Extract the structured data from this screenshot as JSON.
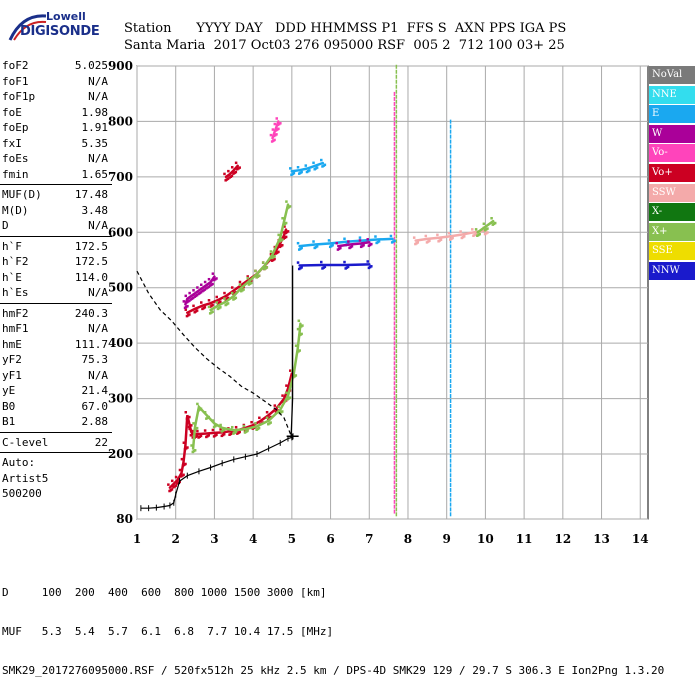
{
  "logo": {
    "line1": "Lowell",
    "line2": "DIGISONDE"
  },
  "header": {
    "row1": "Station      YYYY DAY   DDD HHMMSS P1  FFS S  AXN PPS IGA PS",
    "row2": "Santa Maria  2017 Oct03 276 095000 RSF  005 2  712 100 03+ 25"
  },
  "params": {
    "group1": [
      {
        "k": "foF2",
        "v": "5.025"
      },
      {
        "k": "foF1",
        "v": "N/A"
      },
      {
        "k": "foF1p",
        "v": "N/A"
      },
      {
        "k": "foE",
        "v": "1.98"
      },
      {
        "k": "foEp",
        "v": "1.91"
      },
      {
        "k": "fxI",
        "v": "5.35"
      },
      {
        "k": "foEs",
        "v": "N/A"
      },
      {
        "k": "fmin",
        "v": "1.65"
      }
    ],
    "group2": [
      {
        "k": "MUF(D)",
        "v": "17.48"
      },
      {
        "k": "M(D)",
        "v": "3.48"
      },
      {
        "k": "D",
        "v": "N/A"
      }
    ],
    "group3": [
      {
        "k": "h`F",
        "v": "172.5"
      },
      {
        "k": "h`F2",
        "v": "172.5"
      },
      {
        "k": "h`E",
        "v": "114.0"
      },
      {
        "k": "h`Es",
        "v": "N/A"
      }
    ],
    "group4": [
      {
        "k": "hmF2",
        "v": "240.3"
      },
      {
        "k": "hmF1",
        "v": "N/A"
      },
      {
        "k": "hmE",
        "v": "111.7"
      },
      {
        "k": "yF2",
        "v": "75.3"
      },
      {
        "k": "yF1",
        "v": "N/A"
      },
      {
        "k": "yE",
        "v": "21.4"
      },
      {
        "k": "B0",
        "v": "67.0"
      },
      {
        "k": "B1",
        "v": "2.88"
      }
    ],
    "group5": [
      {
        "k": "C-level",
        "v": "22"
      }
    ],
    "auto": [
      "Auto:",
      "Artist5",
      "500200"
    ]
  },
  "legend": [
    {
      "label": "NoVal",
      "color": "#7a7a7a"
    },
    {
      "label": "NNE",
      "color": "#33ddee"
    },
    {
      "label": "E",
      "color": "#1aa8f0"
    },
    {
      "label": "W",
      "color": "#aa0099"
    },
    {
      "label": "Vo-",
      "color": "#ff44bb"
    },
    {
      "label": "Vo+",
      "color": "#cc0022"
    },
    {
      "label": "SSW",
      "color": "#f4aaaa"
    },
    {
      "label": "X-",
      "color": "#117711"
    },
    {
      "label": "X+",
      "color": "#88c050"
    },
    {
      "label": "SSE",
      "color": "#eedd00"
    },
    {
      "label": "NNW",
      "color": "#1a1acc"
    }
  ],
  "footer": {
    "row1": "D     100  200  400  600  800 1000 1500 3000 [km]",
    "row2": "MUF   5.3  5.4  5.7  6.1  6.8  7.7 10.4 17.5 [MHz]",
    "row3": "SMK29_2017276095000.RSF / 520fx512h 25 kHz 2.5 km / DPS-4D SMK29 129 / 29.7 S 306.3 E Ion2Png 1.3.20"
  },
  "chart_data": {
    "type": "scatter",
    "x_ticks": [
      "1",
      "2",
      "3",
      "4",
      "5",
      "6",
      "7",
      "8",
      "9",
      "10",
      "11",
      "12",
      "13",
      "14"
    ],
    "y_ticks": [
      "80",
      "200",
      "300",
      "400",
      "500",
      "600",
      "700",
      "800",
      "900"
    ],
    "xlim": [
      1,
      14
    ],
    "ylim": [
      80,
      900
    ],
    "grid": true,
    "series": [
      {
        "color": "#cc0022",
        "x": [
          1.85,
          1.95,
          2.05,
          2.15,
          2.2,
          2.25,
          2.3,
          2.35,
          2.4,
          2.45,
          2.5,
          2.6,
          2.8,
          3.0,
          3.2,
          3.4,
          3.6,
          3.8,
          4.0,
          4.2,
          4.4,
          4.6,
          4.8,
          4.9,
          5.0
        ],
        "y": [
          138,
          145,
          152,
          165,
          185,
          215,
          270,
          255,
          240,
          236,
          236,
          236,
          237,
          238,
          239,
          241,
          243,
          247,
          252,
          260,
          270,
          282,
          300,
          318,
          345
        ]
      },
      {
        "color": "#88c050",
        "x": [
          2.45,
          2.5,
          2.6,
          2.8,
          3.0,
          3.2,
          3.5,
          3.8,
          4.1,
          4.4,
          4.7,
          4.9,
          5.05,
          5.15,
          5.2,
          5.22
        ],
        "y": [
          210,
          250,
          285,
          270,
          255,
          247,
          243,
          245,
          250,
          260,
          280,
          305,
          345,
          390,
          420,
          435
        ]
      },
      {
        "color": "#cc0022",
        "x": [
          2.3,
          2.5,
          2.7,
          2.9,
          3.1,
          3.3,
          3.5,
          3.7,
          3.9,
          4.1,
          4.3,
          4.5,
          4.6,
          4.7,
          4.8,
          4.85
        ],
        "y": [
          455,
          462,
          468,
          472,
          478,
          485,
          495,
          505,
          515,
          525,
          540,
          555,
          568,
          580,
          595,
          605
        ]
      },
      {
        "color": "#88c050",
        "x": [
          2.9,
          3.1,
          3.3,
          3.5,
          3.7,
          3.9,
          4.1,
          4.3,
          4.5,
          4.7,
          4.8,
          4.9
        ],
        "y": [
          460,
          468,
          475,
          485,
          500,
          512,
          525,
          540,
          560,
          590,
          620,
          650
        ]
      },
      {
        "color": "#aa0099",
        "x": [
          2.25,
          2.3,
          2.4,
          2.5,
          2.6,
          2.7,
          2.8,
          2.9,
          3.0
        ],
        "y": [
          470,
          480,
          485,
          490,
          495,
          500,
          505,
          510,
          520
        ]
      },
      {
        "color": "#cc0022",
        "x": [
          3.3,
          3.4,
          3.5,
          3.6
        ],
        "y": [
          700,
          705,
          712,
          720
        ]
      },
      {
        "color": "#ff44bb",
        "x": [
          4.5,
          4.55,
          4.6,
          4.65
        ],
        "y": [
          770,
          780,
          790,
          800
        ]
      },
      {
        "color": "#1aa8f0",
        "x": [
          5.0,
          5.2,
          5.4,
          5.6,
          5.8
        ],
        "y": [
          710,
          712,
          715,
          720,
          725
        ]
      },
      {
        "color": "#1aa8f0",
        "x": [
          5.2,
          5.6,
          6.0,
          6.4,
          6.8,
          7.2,
          7.6
        ],
        "y": [
          575,
          578,
          580,
          583,
          585,
          587,
          588
        ]
      },
      {
        "color": "#aa0099",
        "x": [
          6.2,
          6.5,
          6.8,
          7.0
        ],
        "y": [
          575,
          578,
          580,
          582
        ]
      },
      {
        "color": "#f4aaaa",
        "x": [
          8.2,
          8.5,
          8.8,
          9.1,
          9.4,
          9.7,
          10.0
        ],
        "y": [
          585,
          588,
          590,
          593,
          596,
          600,
          603
        ]
      },
      {
        "color": "#88c050",
        "x": [
          9.8,
          10.0,
          10.2
        ],
        "y": [
          600,
          610,
          620
        ]
      },
      {
        "color": "#1a1acc",
        "x": [
          5.2,
          5.8,
          6.4,
          7.0
        ],
        "y": [
          540,
          541,
          541,
          542
        ]
      }
    ],
    "profile": {
      "x": [
        1.1,
        1.3,
        1.5,
        1.7,
        1.85,
        1.95,
        2.0,
        2.1,
        2.3,
        2.6,
        2.9,
        3.2,
        3.5,
        3.8,
        4.1,
        4.4,
        4.7,
        4.9,
        5.0,
        5.02,
        5.03
      ],
      "y": [
        100,
        100,
        101,
        103,
        105,
        110,
        125,
        150,
        160,
        168,
        175,
        183,
        190,
        195,
        200,
        210,
        220,
        228,
        230,
        231,
        232
      ]
    },
    "spread": {
      "x": [
        4.98,
        5.02,
        5.02,
        5.02,
        5.02,
        5.02
      ],
      "y": [
        230,
        300,
        380,
        450,
        500,
        540
      ]
    },
    "dashed": {
      "x": [
        1.0,
        1.3,
        1.6,
        1.9,
        2.2,
        2.5,
        2.8,
        3.1,
        3.4,
        3.7,
        4.0,
        4.3,
        4.6,
        4.8,
        5.0
      ],
      "y": [
        530,
        490,
        460,
        440,
        415,
        392,
        372,
        355,
        340,
        322,
        310,
        295,
        280,
        265,
        230
      ]
    },
    "interference": [
      {
        "x": 9.1,
        "ylo": 85,
        "yhi": 800,
        "color": "#1aa8f0"
      },
      {
        "x": 7.7,
        "ylo": 85,
        "yhi": 900,
        "color": "#88c050"
      },
      {
        "x": 7.65,
        "ylo": 90,
        "yhi": 850,
        "color": "#ff44bb"
      }
    ]
  }
}
